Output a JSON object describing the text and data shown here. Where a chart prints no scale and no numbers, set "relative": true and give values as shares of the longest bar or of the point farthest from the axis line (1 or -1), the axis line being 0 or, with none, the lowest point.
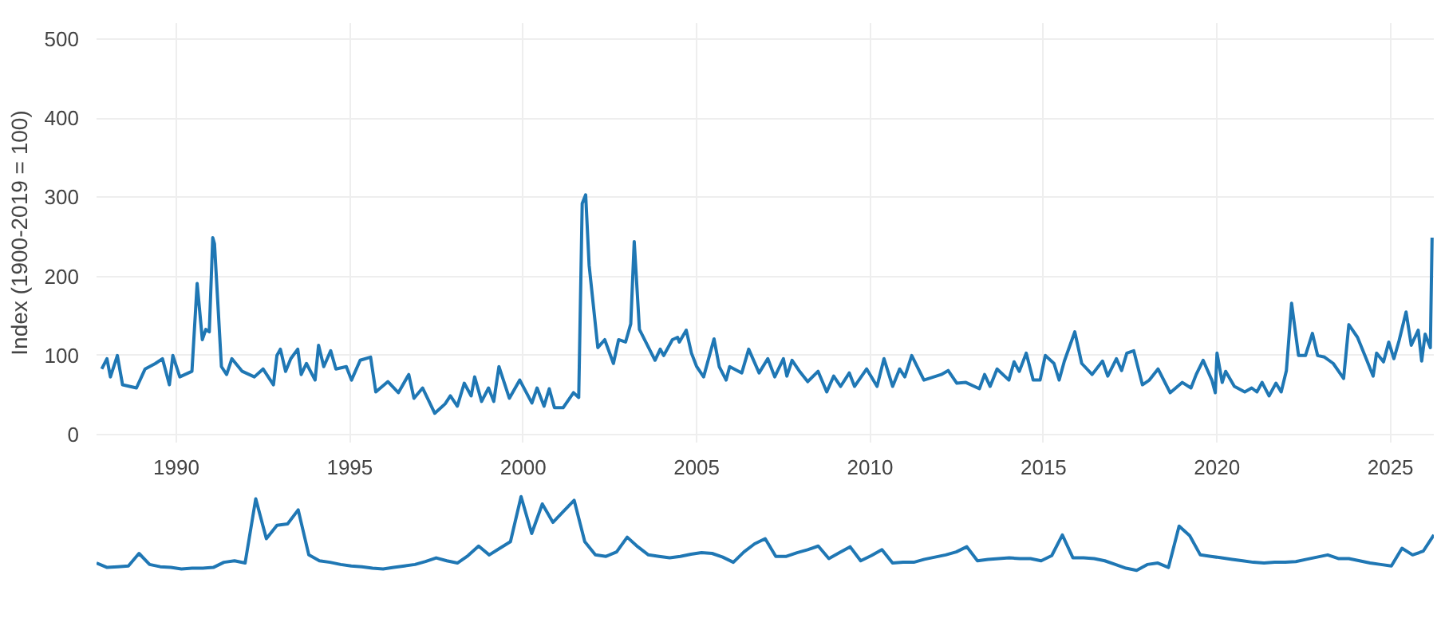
{
  "chart_data": [
    {
      "type": "line",
      "ylabel": "Index (1900-2019 = 100)",
      "xlim": [
        1987.7,
        2026.25
      ],
      "xticks": [
        1990,
        1995,
        2000,
        2005,
        2010,
        2015,
        2020,
        2025
      ],
      "ylim": [
        -10,
        520
      ],
      "yticks": [
        0,
        100,
        200,
        300,
        400,
        500
      ],
      "grid": true,
      "series": [
        {
          "color": "#1f77b4",
          "x": [
            1987.85,
            1988.0,
            1988.1,
            1988.3,
            1988.45,
            1988.85,
            1989.1,
            1989.4,
            1989.6,
            1989.8,
            1989.9,
            1990.1,
            1990.45,
            1990.6,
            1990.75,
            1990.85,
            1990.95,
            1991.05,
            1991.1,
            1991.3,
            1991.45,
            1991.6,
            1991.9,
            1992.25,
            1992.5,
            1992.8,
            1992.9,
            1993.0,
            1993.15,
            1993.3,
            1993.5,
            1993.6,
            1993.75,
            1994.0,
            1994.1,
            1994.25,
            1994.45,
            1994.6,
            1994.9,
            1995.05,
            1995.3,
            1995.6,
            1995.75,
            1996.1,
            1996.4,
            1996.7,
            1996.85,
            1997.1,
            1997.45,
            1997.75,
            1997.9,
            1998.1,
            1998.3,
            1998.5,
            1998.6,
            1998.8,
            1999.0,
            1999.15,
            1999.3,
            1999.6,
            1999.9,
            2000.25,
            2000.4,
            2000.6,
            2000.75,
            2000.9,
            2001.15,
            2001.45,
            2001.6,
            2001.7,
            2001.8,
            2001.9,
            2002.15,
            2002.35,
            2002.6,
            2002.75,
            2002.95,
            2003.1,
            2003.2,
            2003.35,
            2003.8,
            2003.95,
            2004.05,
            2004.3,
            2004.45,
            2004.5,
            2004.7,
            2004.85,
            2005.0,
            2005.2,
            2005.5,
            2005.65,
            2005.85,
            2005.95,
            2006.3,
            2006.5,
            2006.8,
            2007.05,
            2007.25,
            2007.5,
            2007.6,
            2007.75,
            2007.95,
            2008.2,
            2008.5,
            2008.75,
            2008.95,
            2009.15,
            2009.4,
            2009.55,
            2009.9,
            2010.2,
            2010.4,
            2010.65,
            2010.85,
            2011.0,
            2011.2,
            2011.55,
            2012.05,
            2012.25,
            2012.5,
            2012.76,
            2013.15,
            2013.3,
            2013.46,
            2013.66,
            2014.0,
            2014.15,
            2014.3,
            2014.5,
            2014.7,
            2014.9,
            2015.05,
            2015.3,
            2015.45,
            2015.6,
            2015.9,
            2016.1,
            2016.4,
            2016.7,
            2016.85,
            2017.1,
            2017.25,
            2017.4,
            2017.6,
            2017.85,
            2018.05,
            2018.3,
            2018.65,
            2019.0,
            2019.25,
            2019.4,
            2019.6,
            2019.85,
            2019.95,
            2020.0,
            2020.15,
            2020.25,
            2020.5,
            2020.8,
            2021.0,
            2021.15,
            2021.3,
            2021.5,
            2021.7,
            2021.85,
            2022.0,
            2022.15,
            2022.35,
            2022.55,
            2022.75,
            2022.9,
            2023.1,
            2023.35,
            2023.65,
            2023.8,
            2024.05,
            2024.3,
            2024.5,
            2024.6,
            2024.8,
            2024.95,
            2025.1,
            2025.25,
            2025.45,
            2025.6,
            2025.8,
            2025.9,
            2026.0,
            2026.15,
            2026.2
          ],
          "values": [
            83,
            96,
            73,
            100,
            63,
            59,
            83,
            90,
            96,
            63,
            100,
            73,
            80,
            191,
            120,
            133,
            130,
            249,
            241,
            86,
            76,
            96,
            80,
            73,
            83,
            63,
            100,
            108,
            80,
            96,
            108,
            76,
            90,
            69,
            113,
            86,
            106,
            83,
            86,
            69,
            94,
            98,
            54,
            67,
            53,
            76,
            46,
            59,
            27,
            39,
            49,
            36,
            65,
            49,
            73,
            42,
            59,
            42,
            86,
            46,
            69,
            40,
            59,
            36,
            58,
            34,
            34,
            53,
            47,
            292,
            303,
            214,
            110,
            120,
            90,
            120,
            117,
            140,
            244,
            133,
            94,
            108,
            100,
            120,
            123,
            117,
            132,
            103,
            86,
            73,
            121,
            86,
            69,
            86,
            78,
            108,
            78,
            96,
            73,
            96,
            74,
            94,
            81,
            67,
            80,
            54,
            74,
            61,
            78,
            61,
            83,
            61,
            96,
            61,
            83,
            73,
            100,
            69,
            76,
            81,
            65,
            66,
            58,
            76,
            61,
            83,
            69,
            92,
            80,
            103,
            69,
            69,
            100,
            90,
            69,
            93,
            130,
            90,
            76,
            93,
            74,
            96,
            81,
            103,
            106,
            63,
            69,
            83,
            53,
            66,
            59,
            76,
            94,
            69,
            53,
            103,
            66,
            80,
            61,
            54,
            59,
            54,
            66,
            49,
            65,
            54,
            81,
            166,
            100,
            100,
            128,
            100,
            98,
            90,
            71,
            139,
            123,
            96,
            74,
            103,
            92,
            117,
            96,
            119,
            155,
            113,
            132,
            93,
            127,
            110,
            249
          ]
        }
      ]
    },
    {
      "type": "line",
      "relative": true,
      "categories": [
        null,
        null,
        null,
        null,
        null,
        null,
        null,
        null,
        null,
        null,
        null,
        null,
        null,
        null,
        null,
        null,
        null,
        null,
        null,
        null,
        null,
        null,
        null,
        null,
        null,
        null,
        null,
        null,
        null,
        null,
        null,
        null,
        null,
        null,
        null,
        null,
        null,
        null,
        null,
        null,
        null,
        null,
        null,
        null,
        null,
        null,
        null,
        null,
        null,
        null,
        null,
        null,
        null,
        null,
        null,
        null,
        null,
        null,
        null,
        null,
        null,
        null,
        null,
        null,
        null,
        null,
        null,
        null,
        null,
        null,
        null,
        null,
        null,
        null,
        null,
        null,
        null,
        null,
        null,
        null,
        null,
        null,
        null,
        null,
        null,
        null,
        null,
        null,
        null,
        null,
        null,
        null,
        null,
        null,
        null,
        null,
        null,
        null,
        null,
        null,
        null,
        null,
        null,
        null,
        null,
        null,
        null,
        null,
        null,
        null,
        null,
        null,
        null,
        null,
        null,
        null,
        null,
        null,
        null,
        null,
        null,
        null,
        null,
        null,
        null,
        null,
        null
      ],
      "series": [
        {
          "color": "#1f77b4",
          "values": [
            0.1,
            0.04,
            0.05,
            0.06,
            0.23,
            0.08,
            0.05,
            0.04,
            0.02,
            0.03,
            0.03,
            0.04,
            0.11,
            0.13,
            0.1,
            0.97,
            0.43,
            0.61,
            0.63,
            0.82,
            0.21,
            0.13,
            0.11,
            0.08,
            0.06,
            0.05,
            0.03,
            0.02,
            0.04,
            0.06,
            0.08,
            0.12,
            0.17,
            0.13,
            0.1,
            0.2,
            0.33,
            0.21,
            0.3,
            0.39,
            1.0,
            0.5,
            0.9,
            0.65,
            0.8,
            0.95,
            0.39,
            0.21,
            0.19,
            0.25,
            0.45,
            0.32,
            0.21,
            0.19,
            0.17,
            0.19,
            0.22,
            0.24,
            0.23,
            0.18,
            0.11,
            0.25,
            0.36,
            0.43,
            0.19,
            0.19,
            0.24,
            0.28,
            0.33,
            0.16,
            0.24,
            0.32,
            0.13,
            0.2,
            0.28,
            0.1,
            0.11,
            0.11,
            0.15,
            0.18,
            0.21,
            0.25,
            0.32,
            0.13,
            0.15,
            0.16,
            0.17,
            0.16,
            0.16,
            0.13,
            0.2,
            0.48,
            0.17,
            0.17,
            0.16,
            0.13,
            0.08,
            0.03,
            0.0,
            0.08,
            0.1,
            0.04,
            0.6,
            0.47,
            0.21,
            0.19,
            0.17,
            0.15,
            0.13,
            0.11,
            0.1,
            0.11,
            0.11,
            0.12,
            0.15,
            0.18,
            0.21,
            0.16,
            0.16,
            0.13,
            0.1,
            0.08,
            0.06,
            0.3,
            0.21,
            0.26,
            0.48
          ]
        }
      ]
    }
  ]
}
